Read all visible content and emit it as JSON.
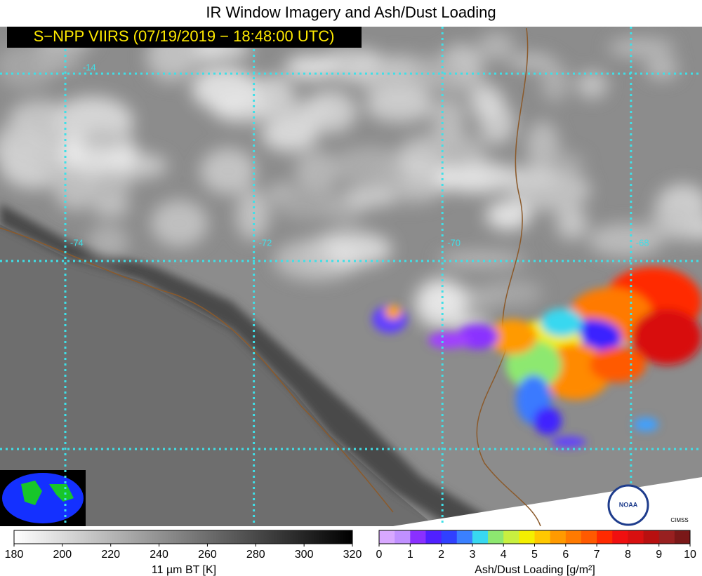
{
  "title": "IR Window Imagery and Ash/Dust Loading",
  "subtitle": "S−NPP VIIRS (07/19/2019 − 18:48:00 UTC)",
  "map": {
    "longitudes": [
      -74,
      -72,
      -70,
      -68
    ],
    "latitudes": [
      -14
    ]
  },
  "logos": [
    "NOAA",
    "CIMSS"
  ],
  "colorbars": [
    {
      "label": "11 µm BT [K]",
      "ticks": [
        180,
        200,
        220,
        240,
        260,
        280,
        300,
        320
      ]
    },
    {
      "label": "Ash/Dust Loading [g/m²]",
      "ticks": [
        0,
        1,
        2,
        3,
        4,
        5,
        6,
        7,
        8,
        9,
        10
      ]
    }
  ]
}
